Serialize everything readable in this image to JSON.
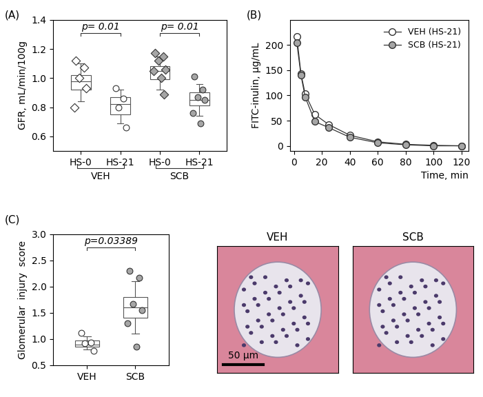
{
  "chart_data": [
    {
      "type": "box",
      "panel_label": "(A)",
      "y_label": "GFR, mL/min/100g",
      "ylim": [
        0.5,
        1.4
      ],
      "yticks": [
        {
          "value": 0.6,
          "label": "0.6"
        },
        {
          "value": 0.8,
          "label": "0.8"
        },
        {
          "value": 1.0,
          "label": "1.0"
        },
        {
          "value": 1.2,
          "label": "1.2"
        },
        {
          "value": 1.4,
          "label": "1.4"
        }
      ],
      "grid": false,
      "annotations": [
        "p= 0.01",
        "p= 0.01"
      ],
      "series": [
        {
          "name": "HS-0",
          "group": "VEH",
          "color": "#ffffff",
          "marker": "diamond",
          "values": [
            1.12,
            1.07,
            1.0,
            0.93,
            0.8
          ],
          "box": {
            "q1": 0.92,
            "median": 0.98,
            "q3": 1.02,
            "whisker_low": 0.84,
            "whisker_high": 1.1
          }
        },
        {
          "name": "HS-21",
          "group": "VEH",
          "color": "#ffffff",
          "marker": "circle",
          "values": [
            0.93,
            0.86,
            0.8,
            0.66
          ],
          "box": {
            "q1": 0.75,
            "median": 0.82,
            "q3": 0.87,
            "whisker_low": 0.69,
            "whisker_high": 0.92
          }
        },
        {
          "name": "HS-0",
          "group": "SCB",
          "color": "#a6a6a6",
          "marker": "diamond",
          "values": [
            1.17,
            1.15,
            1.12,
            1.06,
            1.05,
            1.0,
            0.89
          ],
          "box": {
            "q1": 0.99,
            "median": 1.05,
            "q3": 1.08,
            "whisker_low": 0.92,
            "whisker_high": 1.15
          }
        },
        {
          "name": "HS-21",
          "group": "SCB",
          "color": "#a6a6a6",
          "marker": "circle",
          "values": [
            1.01,
            0.92,
            0.87,
            0.85,
            0.76,
            0.69
          ],
          "box": {
            "q1": 0.81,
            "median": 0.85,
            "q3": 0.9,
            "whisker_low": 0.74,
            "whisker_high": 0.96
          }
        }
      ]
    },
    {
      "type": "line",
      "panel_label": "(B)",
      "x_label": "Time, min",
      "y_label": "FITC-inulin, µg/mL",
      "x": [
        2,
        5,
        8,
        15,
        25,
        40,
        60,
        80,
        100,
        120
      ],
      "xlim": [
        -3,
        125
      ],
      "xticks": [
        0,
        20,
        40,
        60,
        80,
        100,
        120
      ],
      "ylim": [
        -10,
        250
      ],
      "yticks": [
        0,
        50,
        100,
        150,
        200
      ],
      "grid": false,
      "legend": "upper right",
      "series": [
        {
          "name": "VEH (HS-21)",
          "color": "#ffffff",
          "marker": "circle",
          "values": [
            217,
            143,
            103,
            62,
            42,
            21,
            8,
            3,
            1,
            0
          ]
        },
        {
          "name": "SCB (HS-21)",
          "color": "#a6a6a6",
          "marker": "circle",
          "values": [
            205,
            140,
            97,
            48,
            36,
            17,
            6,
            2,
            0,
            0
          ]
        }
      ]
    },
    {
      "type": "box",
      "panel_label": "(C)",
      "y_label": "Glomerular  injury  score",
      "ylim": [
        0.5,
        3.0
      ],
      "yticks": [
        {
          "value": 0.5,
          "label": "0.5"
        },
        {
          "value": 1.0,
          "label": "1.0"
        },
        {
          "value": 1.5,
          "label": "1.5"
        },
        {
          "value": 2.0,
          "label": "2.0"
        },
        {
          "value": 2.5,
          "label": "2.5"
        },
        {
          "value": 3.0,
          "label": "3.0"
        }
      ],
      "grid": false,
      "annotations": [
        "p=0.03389"
      ],
      "series": [
        {
          "name": "VEH",
          "color": "#ffffff",
          "marker": "circle",
          "values": [
            1.12,
            0.93,
            0.92,
            0.78
          ],
          "box": {
            "q1": 0.85,
            "median": 0.9,
            "q3": 0.97,
            "whisker_low": 0.8,
            "whisker_high": 1.05
          }
        },
        {
          "name": "SCB",
          "color": "#a6a6a6",
          "marker": "circle",
          "values": [
            2.3,
            2.17,
            1.67,
            1.55,
            1.3,
            0.85
          ],
          "box": {
            "q1": 1.4,
            "median": 1.6,
            "q3": 1.8,
            "whisker_low": 1.1,
            "whisker_high": 2.1
          }
        }
      ]
    }
  ],
  "images": {
    "titles": [
      "VEH",
      "SCB"
    ],
    "scale_bar": "50 μm"
  }
}
